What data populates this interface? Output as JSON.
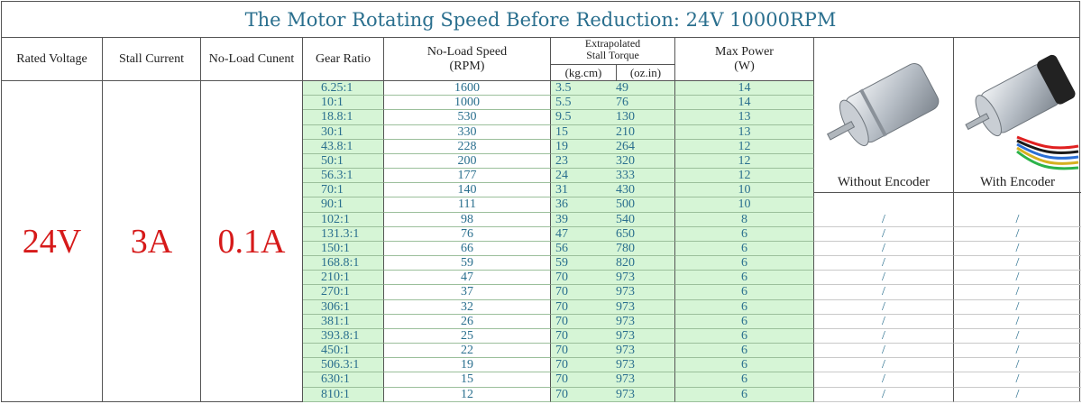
{
  "title": "The Motor Rotating Speed Before Reduction: 24V 10000RPM",
  "headers": {
    "rated_voltage": "Rated Voltage",
    "stall_current": "Stall Current",
    "no_load_current": "No-Load Cunent",
    "gear_ratio": "Gear Ratio",
    "no_load_speed_line1": "No-Load Speed",
    "no_load_speed_line2": "(RPM)",
    "torque_line1": "Extrapolated",
    "torque_line2": "Stall Torque",
    "torque_kg": "(kg.cm)",
    "torque_oz": "(oz.in)",
    "max_power_line1": "Max Power",
    "max_power_line2": "(W)"
  },
  "specs": {
    "voltage": "24V",
    "current": "3A",
    "no_load_current": "0.1A"
  },
  "images": {
    "without_encoder": "Without Encoder",
    "with_encoder": "With Encoder"
  },
  "colors": {
    "title": "#2a6f8e",
    "values": "#2a6f8e",
    "highlight": "#d61a1a",
    "green_fill": "#d6f5d6"
  },
  "rows": [
    {
      "ratio": "6.25:1",
      "speed": "1600",
      "kg": "3.5",
      "oz": "49",
      "power": "14",
      "we": "",
      "wi": ""
    },
    {
      "ratio": "10:1",
      "speed": "1000",
      "kg": "5.5",
      "oz": "76",
      "power": "14",
      "we": "",
      "wi": ""
    },
    {
      "ratio": "18.8:1",
      "speed": "530",
      "kg": "9.5",
      "oz": "130",
      "power": "13",
      "we": "",
      "wi": ""
    },
    {
      "ratio": "30:1",
      "speed": "330",
      "kg": "15",
      "oz": "210",
      "power": "13",
      "we": "",
      "wi": ""
    },
    {
      "ratio": "43.8:1",
      "speed": "228",
      "kg": "19",
      "oz": "264",
      "power": "12",
      "we": "",
      "wi": ""
    },
    {
      "ratio": "50:1",
      "speed": "200",
      "kg": "23",
      "oz": "320",
      "power": "12",
      "we": "",
      "wi": ""
    },
    {
      "ratio": "56.3:1",
      "speed": "177",
      "kg": "24",
      "oz": "333",
      "power": "12",
      "we": "",
      "wi": ""
    },
    {
      "ratio": "70:1",
      "speed": "140",
      "kg": "31",
      "oz": "430",
      "power": "10",
      "we": "",
      "wi": ""
    },
    {
      "ratio": "90:1",
      "speed": "111",
      "kg": "36",
      "oz": "500",
      "power": "10",
      "we": "",
      "wi": ""
    },
    {
      "ratio": "102:1",
      "speed": "98",
      "kg": "39",
      "oz": "540",
      "power": "8",
      "we": "/",
      "wi": "/"
    },
    {
      "ratio": "131.3:1",
      "speed": "76",
      "kg": "47",
      "oz": "650",
      "power": "6",
      "we": "/",
      "wi": "/"
    },
    {
      "ratio": "150:1",
      "speed": "66",
      "kg": "56",
      "oz": "780",
      "power": "6",
      "we": "/",
      "wi": "/"
    },
    {
      "ratio": "168.8:1",
      "speed": "59",
      "kg": "59",
      "oz": "820",
      "power": "6",
      "we": "/",
      "wi": "/"
    },
    {
      "ratio": "210:1",
      "speed": "47",
      "kg": "70",
      "oz": "973",
      "power": "6",
      "we": "/",
      "wi": "/"
    },
    {
      "ratio": "270:1",
      "speed": "37",
      "kg": "70",
      "oz": "973",
      "power": "6",
      "we": "/",
      "wi": "/"
    },
    {
      "ratio": "306:1",
      "speed": "32",
      "kg": "70",
      "oz": "973",
      "power": "6",
      "we": "/",
      "wi": "/"
    },
    {
      "ratio": "381:1",
      "speed": "26",
      "kg": "70",
      "oz": "973",
      "power": "6",
      "we": "/",
      "wi": "/"
    },
    {
      "ratio": "393.8:1",
      "speed": "25",
      "kg": "70",
      "oz": "973",
      "power": "6",
      "we": "/",
      "wi": "/"
    },
    {
      "ratio": "450:1",
      "speed": "22",
      "kg": "70",
      "oz": "973",
      "power": "6",
      "we": "/",
      "wi": "/"
    },
    {
      "ratio": "506.3:1",
      "speed": "19",
      "kg": "70",
      "oz": "973",
      "power": "6",
      "we": "/",
      "wi": "/"
    },
    {
      "ratio": "630:1",
      "speed": "15",
      "kg": "70",
      "oz": "973",
      "power": "6",
      "we": "/",
      "wi": "/"
    },
    {
      "ratio": "810:1",
      "speed": "12",
      "kg": "70",
      "oz": "973",
      "power": "6",
      "we": "/",
      "wi": "/"
    }
  ]
}
